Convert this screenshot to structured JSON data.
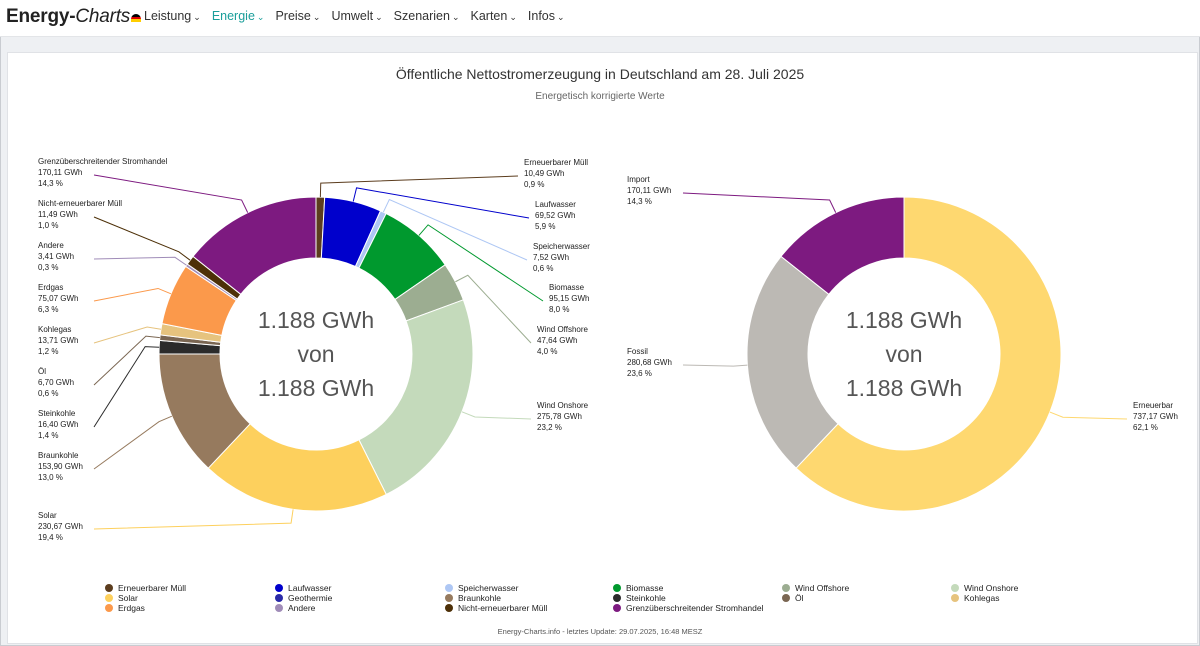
{
  "brand": {
    "part1": "Energy-",
    "part2": "Charts"
  },
  "nav": [
    {
      "label": "Leistung",
      "active": false
    },
    {
      "label": "Energie",
      "active": true
    },
    {
      "label": "Preise",
      "active": false
    },
    {
      "label": "Umwelt",
      "active": false
    },
    {
      "label": "Szenarien",
      "active": false
    },
    {
      "label": "Karten",
      "active": false
    },
    {
      "label": "Infos",
      "active": false
    }
  ],
  "footer": "Energy-Charts.info - letztes Update: 29.07.2025, 16:48 MESZ",
  "chart_data": [
    {
      "type": "pie",
      "title": "Öffentliche Nettostromerzeugung in Deutschland am 28. Juli 2025",
      "subtitle": "Energetisch korrigierte Werte",
      "center_text": [
        "1.188 GWh",
        "von",
        "1.188 GWh"
      ],
      "unit": "GWh",
      "slices": [
        {
          "name": "Erneuerbarer Müll",
          "value": "10,49 GWh",
          "share": "0,9 %",
          "v": 10.49,
          "color": "#5c3d1e"
        },
        {
          "name": "Laufwasser",
          "value": "69,52 GWh",
          "share": "5,9 %",
          "v": 69.52,
          "color": "#0000cc"
        },
        {
          "name": "Speicherwasser",
          "value": "7,52 GWh",
          "share": "0,6 %",
          "v": 7.52,
          "color": "#aec7f4"
        },
        {
          "name": "Biomasse",
          "value": "95,15 GWh",
          "share": "8,0 %",
          "v": 95.15,
          "color": "#00992e"
        },
        {
          "name": "Wind Offshore",
          "value": "47,64 GWh",
          "share": "4,0 %",
          "v": 47.64,
          "color": "#9cad91"
        },
        {
          "name": "Wind Onshore",
          "value": "275,78 GWh",
          "share": "23,2 %",
          "v": 275.78,
          "color": "#c4dabb"
        },
        {
          "name": "Solar",
          "value": "230,67 GWh",
          "share": "19,4 %",
          "v": 230.67,
          "color": "#fdd05d"
        },
        {
          "name": "Braunkohle",
          "value": "153,90 GWh",
          "share": "13,0 %",
          "v": 153.9,
          "color": "#967a5e"
        },
        {
          "name": "Steinkohle",
          "value": "16,40 GWh",
          "share": "1,4 %",
          "v": 16.4,
          "color": "#2b2b2b"
        },
        {
          "name": "Öl",
          "value": "6,70 GWh",
          "share": "0,6 %",
          "v": 6.7,
          "color": "#7a6652"
        },
        {
          "name": "Kohlegas",
          "value": "13,71 GWh",
          "share": "1,2 %",
          "v": 13.71,
          "color": "#e6c37e"
        },
        {
          "name": "Erdgas",
          "value": "75,07 GWh",
          "share": "6,3 %",
          "v": 75.07,
          "color": "#fb994b"
        },
        {
          "name": "Andere",
          "value": "3,41 GWh",
          "share": "0,3 %",
          "v": 3.41,
          "color": "#a08cb8"
        },
        {
          "name": "Nicht-erneuerbarer Müll",
          "value": "11,49 GWh",
          "share": "1,0 %",
          "v": 11.49,
          "color": "#4d3008"
        },
        {
          "name": "Grenzüberschreitender Stromhandel",
          "value": "170,11 GWh",
          "share": "14,3 %",
          "v": 170.11,
          "color": "#7d1a80"
        }
      ]
    },
    {
      "type": "pie",
      "center_text": [
        "1.188 GWh",
        "von",
        "1.188 GWh"
      ],
      "unit": "GWh",
      "slices": [
        {
          "name": "Erneuerbar",
          "value": "737,17 GWh",
          "share": "62,1 %",
          "v": 737.17,
          "color": "#fed870"
        },
        {
          "name": "Fossil",
          "value": "280,68 GWh",
          "share": "23,6 %",
          "v": 280.68,
          "color": "#bcb9b4"
        },
        {
          "name": "Import",
          "value": "170,11 GWh",
          "share": "14,3 %",
          "v": 170.11,
          "color": "#7d1a80"
        }
      ]
    }
  ],
  "legend": [
    {
      "name": "Erneuerbarer Müll",
      "color": "#5c3d1e"
    },
    {
      "name": "Laufwasser",
      "color": "#0000cc"
    },
    {
      "name": "Speicherwasser",
      "color": "#aec7f4"
    },
    {
      "name": "Biomasse",
      "color": "#00992e"
    },
    {
      "name": "Wind Offshore",
      "color": "#9cad91"
    },
    {
      "name": "Wind Onshore",
      "color": "#c4dabb"
    },
    {
      "name": "Solar",
      "color": "#fdd05d"
    },
    {
      "name": "Geothermie",
      "color": "#2a2aa8"
    },
    {
      "name": "Braunkohle",
      "color": "#967a5e"
    },
    {
      "name": "Steinkohle",
      "color": "#2b2b2b"
    },
    {
      "name": "Öl",
      "color": "#7a6652"
    },
    {
      "name": "Kohlegas",
      "color": "#e6c37e"
    },
    {
      "name": "Erdgas",
      "color": "#fb994b"
    },
    {
      "name": "Andere",
      "color": "#a08cb8"
    },
    {
      "name": "Nicht-erneuerbarer Müll",
      "color": "#4d3008"
    },
    {
      "name": "Grenzüberschreitender Stromhandel",
      "color": "#7d1a80"
    }
  ]
}
